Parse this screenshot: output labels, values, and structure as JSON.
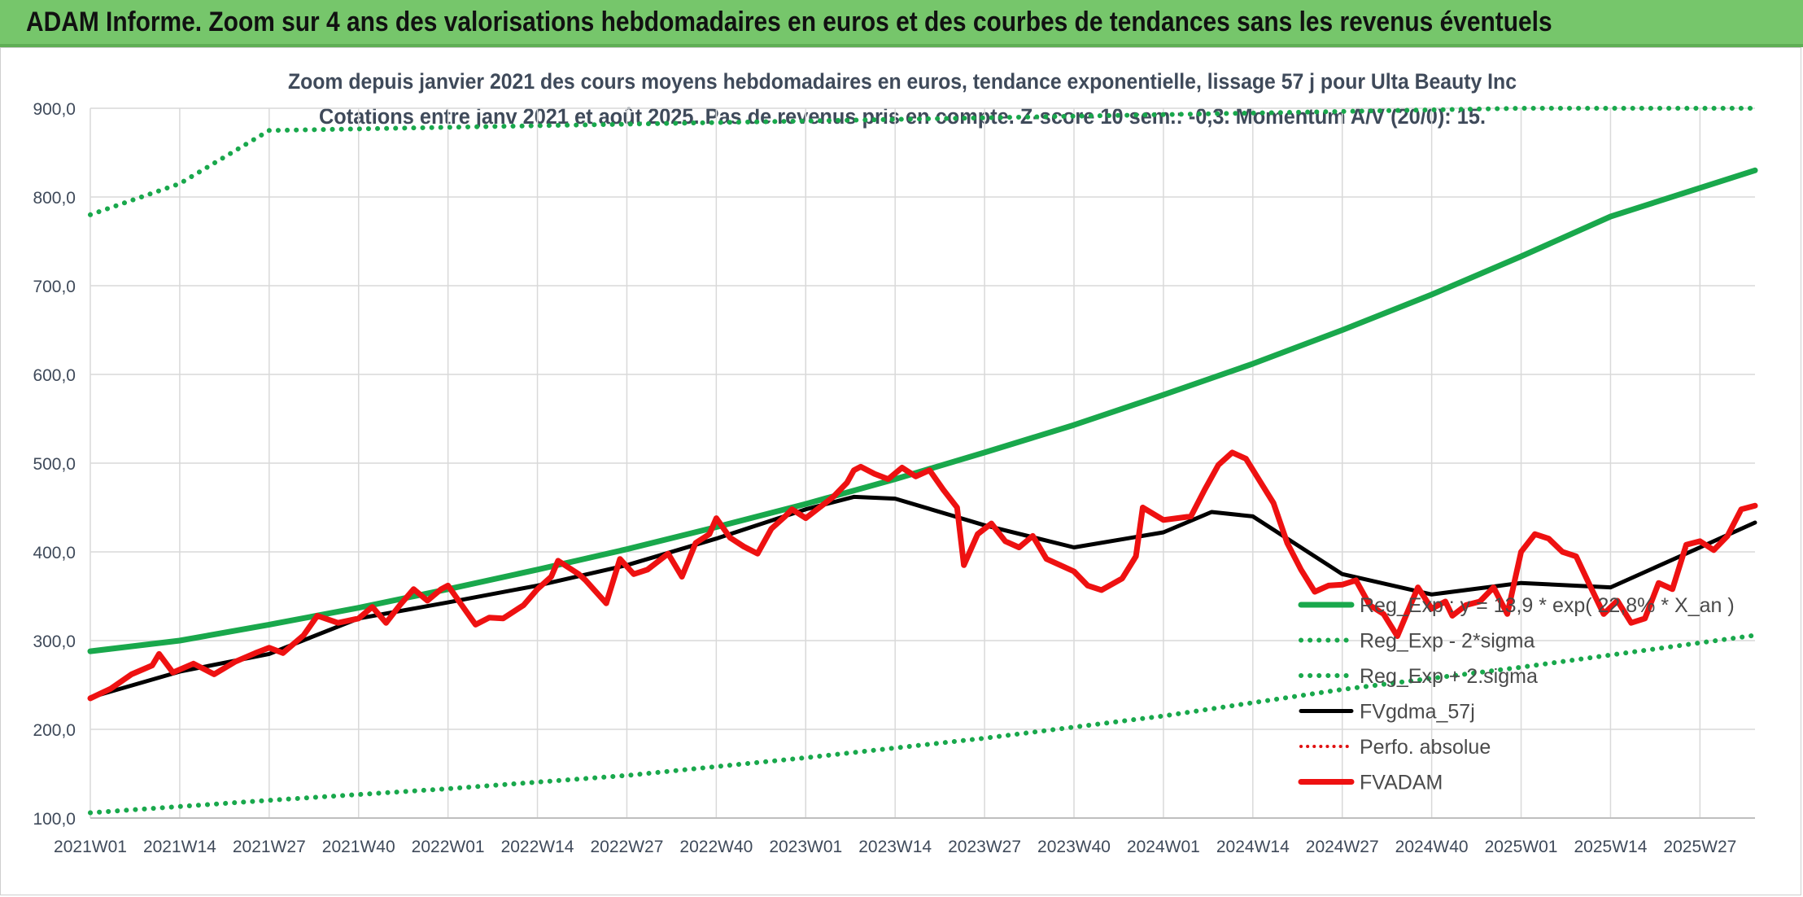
{
  "header": {
    "title": "ADAM Informe. Zoom sur 4 ans des valorisations hebdomadaires en euros et des courbes de tendances sans les revenus éventuels"
  },
  "colors": {
    "banner": "#76c66b",
    "trend": "#19a84c",
    "band": "#19a84c",
    "gdma": "#000000",
    "perfo": "#e01010",
    "fvadam": "#ee1111",
    "grid": "#d9d9d9"
  },
  "chart_data": {
    "type": "line",
    "title": "Zoom depuis janvier 2021 des cours moyens hebdomadaires en euros, tendance exponentielle, lissage 57 j pour Ulta Beauty Inc",
    "subtitle": "Cotations entre janv 2021 et août 2025. Pas de revenus pris en compte. Z-score 10 sem.: -0,3. Momentum A/V (20/0): 15.",
    "xlabel": "",
    "ylabel": "",
    "ylim": [
      100,
      900
    ],
    "y_ticks": [
      "100,0",
      "200,0",
      "300,0",
      "400,0",
      "500,0",
      "600,0",
      "700,0",
      "800,0",
      "900,0"
    ],
    "x_ticks": [
      "2021W01",
      "2021W14",
      "2021W27",
      "2021W40",
      "2022W01",
      "2022W14",
      "2022W27",
      "2022W40",
      "2023W01",
      "2023W14",
      "2023W27",
      "2023W40",
      "2024W01",
      "2024W14",
      "2024W27",
      "2024W40",
      "2025W01",
      "2025W14",
      "2025W27"
    ],
    "grid": true,
    "legend_position": "bottom-right",
    "series": [
      {
        "name": "Reg_Exp : y = 13,9 * exp( 22,8% *  X_an )",
        "style": "solid-thick",
        "points": [
          [
            0,
            288
          ],
          [
            13,
            300
          ],
          [
            26,
            318
          ],
          [
            39,
            337
          ],
          [
            52,
            358
          ],
          [
            65,
            380
          ],
          [
            78,
            403
          ],
          [
            91,
            428
          ],
          [
            104,
            454
          ],
          [
            117,
            482
          ],
          [
            130,
            512
          ],
          [
            143,
            543
          ],
          [
            156,
            577
          ],
          [
            169,
            612
          ],
          [
            182,
            650
          ],
          [
            195,
            690
          ],
          [
            208,
            733
          ],
          [
            221,
            778
          ],
          [
            242,
            830
          ]
        ]
      },
      {
        "name": "Reg_Exp - 2*sigma",
        "style": "dotted",
        "points": [
          [
            0,
            106
          ],
          [
            26,
            120
          ],
          [
            52,
            133
          ],
          [
            78,
            148
          ],
          [
            104,
            168
          ],
          [
            130,
            190
          ],
          [
            156,
            215
          ],
          [
            182,
            245
          ],
          [
            208,
            270
          ],
          [
            242,
            306
          ]
        ]
      },
      {
        "name": "Reg_Exp + 2.sigma",
        "style": "dotted",
        "points": [
          [
            0,
            780
          ],
          [
            13,
            815
          ],
          [
            26,
            875
          ],
          [
            208,
            900
          ],
          [
            242,
            900
          ]
        ]
      },
      {
        "name": "FVgdma_57j",
        "style": "solid",
        "points": [
          [
            0,
            236
          ],
          [
            13,
            265
          ],
          [
            26,
            285
          ],
          [
            39,
            325
          ],
          [
            52,
            343
          ],
          [
            65,
            362
          ],
          [
            78,
            385
          ],
          [
            91,
            415
          ],
          [
            104,
            448
          ],
          [
            111,
            462
          ],
          [
            117,
            460
          ],
          [
            130,
            430
          ],
          [
            143,
            405
          ],
          [
            156,
            422
          ],
          [
            163,
            445
          ],
          [
            169,
            440
          ],
          [
            182,
            375
          ],
          [
            195,
            352
          ],
          [
            208,
            365
          ],
          [
            221,
            360
          ],
          [
            234,
            405
          ],
          [
            242,
            433
          ]
        ]
      },
      {
        "name": "Perfo. absolue",
        "style": "dotted-red",
        "points": []
      },
      {
        "name": "FVADAM",
        "style": "solid-thick-red",
        "points": [
          [
            0,
            235
          ],
          [
            3,
            246
          ],
          [
            6,
            262
          ],
          [
            9,
            272
          ],
          [
            10,
            285
          ],
          [
            12,
            264
          ],
          [
            15,
            274
          ],
          [
            18,
            262
          ],
          [
            21,
            276
          ],
          [
            24,
            286
          ],
          [
            26,
            292
          ],
          [
            28,
            286
          ],
          [
            31,
            306
          ],
          [
            33,
            328
          ],
          [
            36,
            320
          ],
          [
            39,
            325
          ],
          [
            41,
            338
          ],
          [
            43,
            320
          ],
          [
            45,
            340
          ],
          [
            47,
            358
          ],
          [
            49,
            345
          ],
          [
            51,
            358
          ],
          [
            52,
            362
          ],
          [
            54,
            340
          ],
          [
            56,
            318
          ],
          [
            58,
            326
          ],
          [
            60,
            325
          ],
          [
            63,
            340
          ],
          [
            65,
            358
          ],
          [
            67,
            372
          ],
          [
            68,
            390
          ],
          [
            71,
            375
          ],
          [
            72,
            368
          ],
          [
            75,
            342
          ],
          [
            77,
            392
          ],
          [
            79,
            375
          ],
          [
            81,
            380
          ],
          [
            84,
            398
          ],
          [
            86,
            372
          ],
          [
            88,
            410
          ],
          [
            90,
            420
          ],
          [
            91,
            438
          ],
          [
            93,
            416
          ],
          [
            95,
            406
          ],
          [
            97,
            398
          ],
          [
            99,
            426
          ],
          [
            101,
            440
          ],
          [
            102,
            448
          ],
          [
            104,
            438
          ],
          [
            106,
            450
          ],
          [
            108,
            462
          ],
          [
            110,
            478
          ],
          [
            111,
            492
          ],
          [
            112,
            496
          ],
          [
            114,
            488
          ],
          [
            116,
            482
          ],
          [
            118,
            495
          ],
          [
            120,
            485
          ],
          [
            122,
            492
          ],
          [
            124,
            470
          ],
          [
            126,
            450
          ],
          [
            127,
            385
          ],
          [
            129,
            420
          ],
          [
            131,
            432
          ],
          [
            133,
            412
          ],
          [
            135,
            405
          ],
          [
            137,
            418
          ],
          [
            139,
            392
          ],
          [
            141,
            385
          ],
          [
            143,
            378
          ],
          [
            145,
            362
          ],
          [
            147,
            357
          ],
          [
            150,
            370
          ],
          [
            152,
            395
          ],
          [
            153,
            450
          ],
          [
            156,
            436
          ],
          [
            158,
            438
          ],
          [
            160,
            440
          ],
          [
            162,
            470
          ],
          [
            164,
            498
          ],
          [
            166,
            512
          ],
          [
            168,
            505
          ],
          [
            170,
            480
          ],
          [
            172,
            455
          ],
          [
            174,
            410
          ],
          [
            176,
            380
          ],
          [
            178,
            355
          ],
          [
            180,
            362
          ],
          [
            182,
            363
          ],
          [
            184,
            368
          ],
          [
            186,
            340
          ],
          [
            188,
            330
          ],
          [
            190,
            305
          ],
          [
            193,
            360
          ],
          [
            195,
            336
          ],
          [
            197,
            344
          ],
          [
            198,
            328
          ],
          [
            200,
            340
          ],
          [
            202,
            344
          ],
          [
            204,
            360
          ],
          [
            206,
            330
          ],
          [
            208,
            400
          ],
          [
            210,
            420
          ],
          [
            212,
            415
          ],
          [
            214,
            400
          ],
          [
            216,
            395
          ],
          [
            218,
            362
          ],
          [
            220,
            330
          ],
          [
            222,
            345
          ],
          [
            224,
            320
          ],
          [
            226,
            325
          ],
          [
            228,
            365
          ],
          [
            230,
            358
          ],
          [
            232,
            408
          ],
          [
            234,
            412
          ],
          [
            236,
            402
          ],
          [
            238,
            418
          ],
          [
            240,
            448
          ],
          [
            242,
            452
          ]
        ]
      }
    ]
  }
}
